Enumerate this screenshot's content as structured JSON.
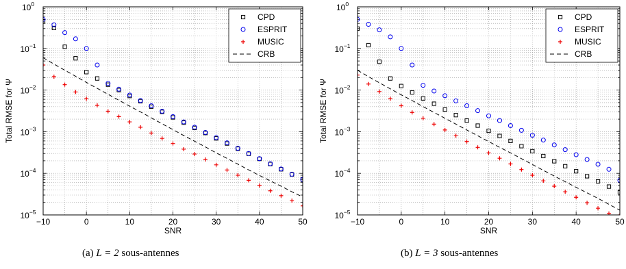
{
  "colors": {
    "cpd": "#000000",
    "esprit": "#0000ee",
    "music": "#ee0000",
    "crb": "#000000",
    "grid": "#9a9a9a"
  },
  "chart_data": [
    {
      "type": "scatter",
      "xlabel": "SNR",
      "ylabel": "Total RMSE for Ψ",
      "xlim": [
        -10,
        50
      ],
      "ylim": [
        1e-05,
        1
      ],
      "yscale": "log",
      "xticks": [
        -10,
        0,
        10,
        20,
        30,
        40,
        50
      ],
      "xtick_labels": [
        "−10",
        "0",
        "10",
        "20",
        "30",
        "40",
        "50"
      ],
      "yticks": [
        1e-05,
        0.0001,
        0.001,
        0.01,
        0.1,
        1
      ],
      "ytick_labels": [
        {
          "base": "10",
          "exp": "−5"
        },
        {
          "base": "10",
          "exp": "−4"
        },
        {
          "base": "10",
          "exp": "−3"
        },
        {
          "base": "10",
          "exp": "−2"
        },
        {
          "base": "10",
          "exp": "−1"
        },
        {
          "base": "10",
          "exp": "0"
        }
      ],
      "grid": true,
      "legend": "top-right",
      "caption_label": "(a)",
      "caption_math": "L = 2",
      "caption_text": "sous-antennes",
      "x": [
        -10,
        -7.5,
        -5,
        -2.5,
        0,
        2.5,
        5,
        7.5,
        10,
        12.5,
        15,
        17.5,
        20,
        22.5,
        25,
        27.5,
        30,
        32.5,
        35,
        37.5,
        40,
        42.5,
        45,
        47.5,
        50
      ],
      "series": [
        {
          "name": "CPD",
          "marker": "square",
          "color": "#000000",
          "values": [
            0.45,
            0.31,
            0.11,
            0.058,
            0.027,
            0.019,
            0.0135,
            0.01,
            0.0072,
            0.0054,
            0.004,
            0.003,
            0.0022,
            0.00165,
            0.00123,
            0.00093,
            0.00069,
            0.00052,
            0.00039,
            0.000295,
            0.000222,
            0.000167,
            0.000125,
            9.4e-05,
            7e-05
          ]
        },
        {
          "name": "ESPRIT",
          "marker": "circle",
          "color": "#0000ee",
          "values": [
            0.5,
            0.37,
            0.24,
            0.17,
            0.1,
            0.04,
            0.0145,
            0.0105,
            0.0076,
            0.0056,
            0.0042,
            0.0031,
            0.0023,
            0.00172,
            0.00128,
            0.00096,
            0.00072,
            0.00054,
            0.0004,
            0.0003,
            0.000225,
            0.00017,
            0.000127,
            9.5e-05,
            7.1e-05
          ]
        },
        {
          "name": "MUSIC",
          "marker": "plus",
          "color": "#ee0000",
          "values": [
            0.04,
            0.021,
            0.0135,
            0.009,
            0.0062,
            0.0043,
            0.0031,
            0.0023,
            0.00172,
            0.00128,
            0.00093,
            0.00069,
            0.00052,
            0.00038,
            0.00029,
            0.000215,
            0.00016,
            0.00012,
            9e-05,
            6.8e-05,
            5.1e-05,
            3.8e-05,
            2.9e-05,
            2.2e-05,
            1.65e-05
          ]
        },
        {
          "name": "CRB",
          "marker": "dashed-line",
          "color": "#000000",
          "values": [
            0.06,
            0.042,
            0.03,
            0.0215,
            0.0153,
            0.011,
            0.0079,
            0.0057,
            0.0041,
            0.003,
            0.00215,
            0.00155,
            0.00112,
            0.00081,
            0.00059,
            0.00043,
            0.00031,
            0.000228,
            0.000166,
            0.000121,
            8.9e-05,
            6.6e-05,
            4.9e-05,
            3.6e-05,
            2.7e-05
          ]
        }
      ]
    },
    {
      "type": "scatter",
      "xlabel": "SNR",
      "ylabel": "Total RMSE for Ψ",
      "xlim": [
        -10,
        50
      ],
      "ylim": [
        1e-05,
        1
      ],
      "yscale": "log",
      "xticks": [
        -10,
        0,
        10,
        20,
        30,
        40,
        50
      ],
      "xtick_labels": [
        "−10",
        "0",
        "10",
        "20",
        "30",
        "40",
        "50"
      ],
      "yticks": [
        1e-05,
        0.0001,
        0.001,
        0.01,
        0.1,
        1
      ],
      "ytick_labels": [
        {
          "base": "10",
          "exp": "−5"
        },
        {
          "base": "10",
          "exp": "−4"
        },
        {
          "base": "10",
          "exp": "−3"
        },
        {
          "base": "10",
          "exp": "−2"
        },
        {
          "base": "10",
          "exp": "−1"
        },
        {
          "base": "10",
          "exp": "0"
        }
      ],
      "grid": true,
      "legend": "top-right",
      "caption_label": "(b)",
      "caption_math": "L = 3",
      "caption_text": "sous-antennes",
      "x": [
        -10,
        -7.5,
        -5,
        -2.5,
        0,
        2.5,
        5,
        7.5,
        10,
        12.5,
        15,
        17.5,
        20,
        22.5,
        25,
        27.5,
        30,
        32.5,
        35,
        37.5,
        40,
        42.5,
        45,
        47.5,
        50
      ],
      "series": [
        {
          "name": "CPD",
          "marker": "square",
          "color": "#000000",
          "values": [
            0.3,
            0.12,
            0.048,
            0.019,
            0.0125,
            0.0088,
            0.0063,
            0.0047,
            0.0034,
            0.0025,
            0.00185,
            0.0014,
            0.00105,
            0.00079,
            0.0006,
            0.00045,
            0.00034,
            0.00026,
            0.000195,
            0.000148,
            0.000112,
            8.5e-05,
            6.4e-05,
            4.8e-05,
            3.5e-05
          ]
        },
        {
          "name": "ESPRIT",
          "marker": "circle",
          "color": "#0000ee",
          "values": [
            0.5,
            0.38,
            0.28,
            0.19,
            0.1,
            0.04,
            0.013,
            0.0095,
            0.0073,
            0.0055,
            0.0042,
            0.0032,
            0.0024,
            0.00185,
            0.0014,
            0.00108,
            0.00082,
            0.00063,
            0.00048,
            0.00037,
            0.00028,
            0.000215,
            0.000165,
            0.000125,
            6.8e-05
          ]
        },
        {
          "name": "MUSIC",
          "marker": "plus",
          "color": "#ee0000",
          "values": [
            0.023,
            0.014,
            0.0092,
            0.0062,
            0.0042,
            0.0029,
            0.0021,
            0.00152,
            0.0011,
            0.0008,
            0.00058,
            0.00042,
            0.00031,
            0.00023,
            0.000168,
            0.000123,
            9e-05,
            6.6e-05,
            4.9e-05,
            3.6e-05,
            2.65e-05,
            1.95e-05,
            1.45e-05,
            1.08e-05,
            1e-05
          ]
        },
        {
          "name": "CRB",
          "marker": "dashed-line",
          "color": "#000000",
          "values": [
            0.03,
            0.021,
            0.015,
            0.0107,
            0.0077,
            0.0056,
            0.004,
            0.0029,
            0.0021,
            0.00152,
            0.0011,
            0.0008,
            0.00058,
            0.00042,
            0.00031,
            0.000225,
            0.000163,
            0.000118,
            8.6e-05,
            6.3e-05,
            4.6e-05,
            3.4e-05,
            2.5e-05,
            1.8e-05,
            1.3e-05
          ]
        }
      ]
    }
  ]
}
